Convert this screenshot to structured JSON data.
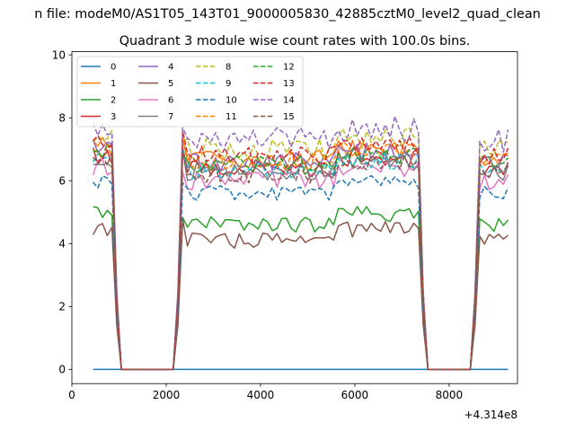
{
  "figure": {
    "suptitle": "n file: modeM0/AS1T05_143T01_9000005830_42885cztM0_level2_quad_clean"
  },
  "chart_data": {
    "type": "line",
    "title": "Quadrant 3 module wise count rates with 100.0s bins.",
    "xlabel": "",
    "ylabel": "",
    "x_offset_label": "+4.314e8",
    "xlim": [
      0,
      9450
    ],
    "ylim": [
      -0.45,
      10.1
    ],
    "x_ticks": [
      0,
      2000,
      4000,
      6000,
      8000
    ],
    "x_tick_labels": [
      "0",
      "2000",
      "4000",
      "6000",
      "8000"
    ],
    "y_ticks": [
      0,
      2,
      4,
      6,
      8,
      10
    ],
    "y_tick_labels": [
      "0",
      "2",
      "4",
      "6",
      "8",
      "10"
    ],
    "grid": false,
    "legend_position": "upper-left",
    "legend_columns": 4,
    "x": [
      450,
      550,
      650,
      750,
      850,
      950,
      1050,
      1150,
      1250,
      1350,
      1450,
      1550,
      1650,
      1750,
      1850,
      1950,
      2050,
      2150,
      2250,
      2350,
      2450,
      2550,
      2650,
      2750,
      2850,
      2950,
      3050,
      3150,
      3250,
      3350,
      3450,
      3550,
      3650,
      3750,
      3850,
      3950,
      4050,
      4150,
      4250,
      4350,
      4450,
      4550,
      4650,
      4750,
      4850,
      4950,
      5050,
      5150,
      5250,
      5350,
      5450,
      5550,
      5650,
      5750,
      5850,
      5950,
      6050,
      6150,
      6250,
      6350,
      6450,
      6550,
      6650,
      6750,
      6850,
      6950,
      7050,
      7150,
      7250,
      7350,
      7450,
      7550,
      7650,
      7750,
      7850,
      7950,
      8050,
      8150,
      8250,
      8350,
      8450,
      8550,
      8650,
      8750,
      8850,
      8950,
      9050,
      9150,
      9250
    ],
    "segments": [
      [
        450,
        950
      ],
      [
        2250,
        7450
      ],
      [
        8550,
        9250
      ]
    ],
    "series": [
      {
        "name": "0",
        "color": "#1f77b4",
        "dash": "solid",
        "level": 0.0,
        "amp": 0.0
      },
      {
        "name": "1",
        "color": "#ff7f0e",
        "dash": "solid",
        "level": 6.7,
        "amp": 0.3
      },
      {
        "name": "2",
        "color": "#2ca02c",
        "dash": "solid",
        "level": 4.6,
        "amp": 0.25
      },
      {
        "name": "3",
        "color": "#d62728",
        "dash": "solid",
        "level": 6.4,
        "amp": 0.3
      },
      {
        "name": "4",
        "color": "#9467bd",
        "dash": "solid",
        "level": 6.6,
        "amp": 0.3
      },
      {
        "name": "5",
        "color": "#8c564b",
        "dash": "solid",
        "level": 4.1,
        "amp": 0.25
      },
      {
        "name": "6",
        "color": "#e377c2",
        "dash": "solid",
        "level": 6.0,
        "amp": 0.3
      },
      {
        "name": "7",
        "color": "#7f7f7f",
        "dash": "solid",
        "level": 6.3,
        "amp": 0.3
      },
      {
        "name": "8",
        "color": "#bcbd22",
        "dash": "dashed",
        "level": 7.0,
        "amp": 0.35
      },
      {
        "name": "9",
        "color": "#17becf",
        "dash": "dashed",
        "level": 6.3,
        "amp": 0.3
      },
      {
        "name": "10",
        "color": "#1f77b4",
        "dash": "dashed",
        "level": 5.6,
        "amp": 0.25
      },
      {
        "name": "11",
        "color": "#ff7f0e",
        "dash": "dashed",
        "level": 6.6,
        "amp": 0.3
      },
      {
        "name": "12",
        "color": "#2ca02c",
        "dash": "dashed",
        "level": 6.5,
        "amp": 0.3
      },
      {
        "name": "13",
        "color": "#d62728",
        "dash": "dashed",
        "level": 6.8,
        "amp": 0.3
      },
      {
        "name": "14",
        "color": "#9467bd",
        "dash": "dashed",
        "level": 7.3,
        "amp": 0.4
      },
      {
        "name": "15",
        "color": "#8c564b",
        "dash": "dashed",
        "level": 6.2,
        "amp": 0.3
      }
    ]
  }
}
